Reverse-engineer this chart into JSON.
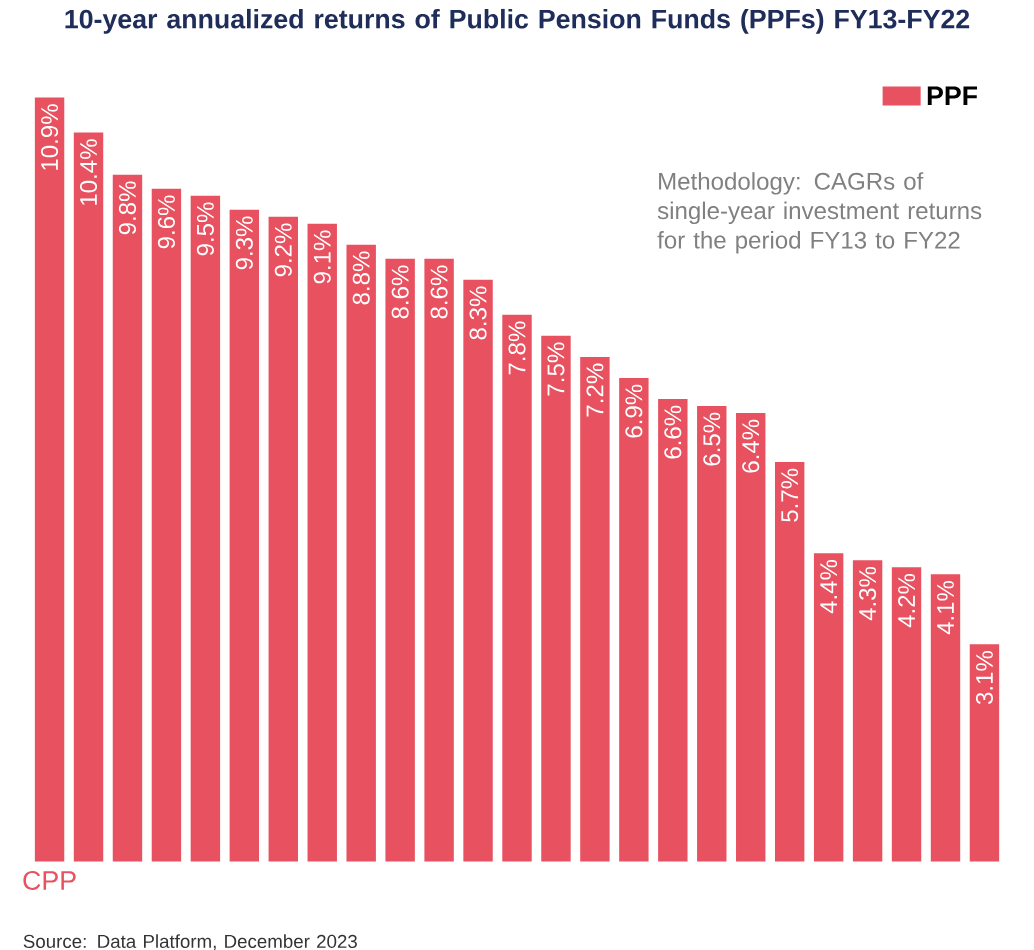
{
  "chart_data": {
    "type": "bar",
    "title": "10-year annualized returns of Public Pension Funds (PPFs) FY13-FY22",
    "categories": [
      "CPP",
      null,
      null,
      null,
      null,
      null,
      null,
      null,
      null,
      null,
      null,
      null,
      null,
      null,
      null,
      null,
      null,
      null,
      null,
      null,
      null,
      null,
      null,
      null,
      null
    ],
    "series": [
      {
        "name": "PPF",
        "color": "#e8515f",
        "values": [
          10.9,
          10.4,
          9.8,
          9.6,
          9.5,
          9.3,
          9.2,
          9.1,
          8.8,
          8.6,
          8.6,
          8.3,
          7.8,
          7.5,
          7.2,
          6.9,
          6.6,
          6.5,
          6.4,
          5.7,
          4.4,
          4.3,
          4.2,
          4.1,
          3.1
        ],
        "value_labels": [
          "10.9%",
          "10.4%",
          "9.8%",
          "9.6%",
          "9.5%",
          "9.3%",
          "9.2%",
          "9.1%",
          "8.8%",
          "8.6%",
          "8.6%",
          "8.3%",
          "7.8%",
          "7.5%",
          "7.2%",
          "6.9%",
          "6.6%",
          "6.5%",
          "6.4%",
          "5.7%",
          "4.4%",
          "4.3%",
          "4.2%",
          "4.1%",
          "3.1%"
        ]
      }
    ],
    "legend": "top right",
    "annotations": [
      "Methodology: CAGRs of single-year investment returns for the period FY13 to FY22",
      "Source: Data Platform, December 2023"
    ]
  }
}
